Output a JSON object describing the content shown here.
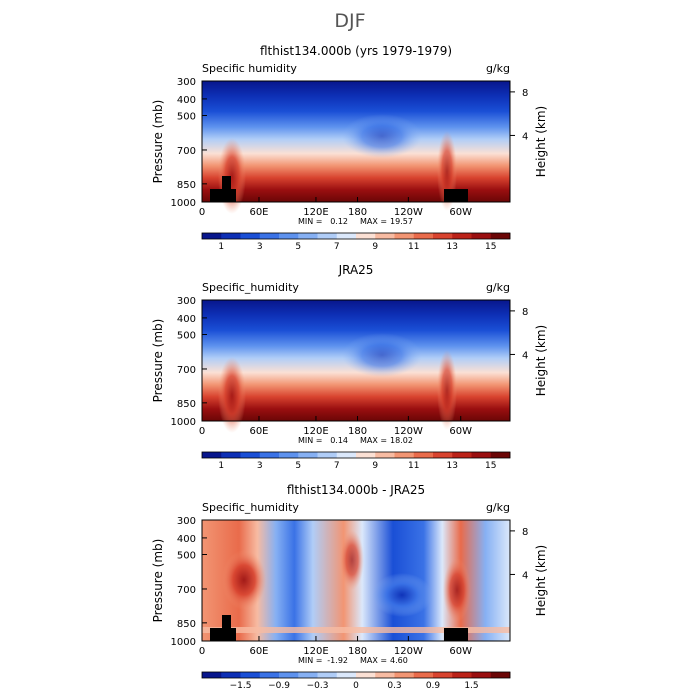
{
  "page": {
    "title": "DJF"
  },
  "chart_data": [
    {
      "type": "heatmap",
      "title": "flthist134.000b (yrs 1979-1979)",
      "variable": "Specific humidity",
      "units": "g/kg",
      "ylabel": "Pressure (mb)",
      "ylabel_right": "Height (km)",
      "x_ticks": [
        "0",
        "60E",
        "120E",
        "180",
        "120W",
        "60W"
      ],
      "y_ticks": [
        "300",
        "400",
        "500",
        "700",
        "850",
        "1000"
      ],
      "y_ticks_right": [
        "8",
        "4"
      ],
      "stats": {
        "min_label": "MIN =",
        "min": "0.12",
        "max_label": "MAX =",
        "max": "19.57"
      },
      "colorbar": {
        "labels": [
          "1",
          "3",
          "5",
          "7",
          "9",
          "11",
          "13",
          "15"
        ],
        "colors": [
          "#08168c",
          "#0d2fb5",
          "#1a4fd6",
          "#3a72e6",
          "#5e92ee",
          "#86b0f3",
          "#b0cdf7",
          "#dbe8fb",
          "#fbe0d4",
          "#f7bba2",
          "#f29573",
          "#e96b4b",
          "#d8432f",
          "#bb2218",
          "#9a0f10",
          "#6b0606"
        ]
      }
    },
    {
      "type": "heatmap",
      "title": "JRA25",
      "variable": "Specific_humidity",
      "units": "g/kg",
      "ylabel": "Pressure (mb)",
      "ylabel_right": "Height (km)",
      "x_ticks": [
        "0",
        "60E",
        "120E",
        "180",
        "120W",
        "60W"
      ],
      "y_ticks": [
        "300",
        "400",
        "500",
        "700",
        "850",
        "1000"
      ],
      "y_ticks_right": [
        "8",
        "4"
      ],
      "stats": {
        "min_label": "MIN =",
        "min": "0.14",
        "max_label": "MAX =",
        "max": "18.02"
      },
      "colorbar": {
        "labels": [
          "1",
          "3",
          "5",
          "7",
          "9",
          "11",
          "13",
          "15"
        ],
        "colors": [
          "#08168c",
          "#0d2fb5",
          "#1a4fd6",
          "#3a72e6",
          "#5e92ee",
          "#86b0f3",
          "#b0cdf7",
          "#dbe8fb",
          "#fbe0d4",
          "#f7bba2",
          "#f29573",
          "#e96b4b",
          "#d8432f",
          "#bb2218",
          "#9a0f10",
          "#6b0606"
        ]
      }
    },
    {
      "type": "heatmap",
      "title": "flthist134.000b - JRA25",
      "variable": "Specific_humidity",
      "units": "g/kg",
      "ylabel": "Pressure (mb)",
      "ylabel_right": "Height (km)",
      "x_ticks": [
        "0",
        "60E",
        "120E",
        "180",
        "120W",
        "60W"
      ],
      "y_ticks": [
        "300",
        "400",
        "500",
        "700",
        "850",
        "1000"
      ],
      "y_ticks_right": [
        "8",
        "4"
      ],
      "stats": {
        "min_label": "MIN =",
        "min": "-1.92",
        "max_label": "MAX =",
        "max": "4.60"
      },
      "colorbar": {
        "labels": [
          "−1.5",
          "−0.9",
          "−0.3",
          "0",
          "0.3",
          "0.9",
          "1.5"
        ],
        "colors": [
          "#08168c",
          "#0d2fb5",
          "#1a4fd6",
          "#3a72e6",
          "#5e92ee",
          "#86b0f3",
          "#b0cdf7",
          "#dbe8fb",
          "#fbe0d4",
          "#f7bba2",
          "#f29573",
          "#e96b4b",
          "#d8432f",
          "#bb2218",
          "#9a0f10",
          "#6b0606"
        ]
      }
    }
  ]
}
